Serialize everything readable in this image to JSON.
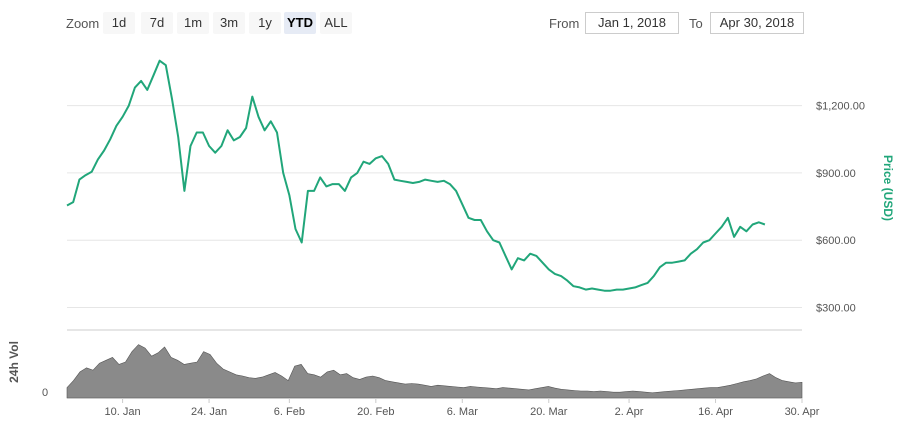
{
  "toolbar": {
    "zoom_label": "Zoom",
    "buttons": [
      "1d",
      "7d",
      "1m",
      "3m",
      "1y",
      "YTD",
      "ALL"
    ],
    "active": "YTD",
    "from_label": "From",
    "from_value": "Jan 1, 2018",
    "to_label": "To",
    "to_value": "Apr 30, 2018"
  },
  "colors": {
    "line": "#21a67a",
    "volume": "#8a8a8a",
    "grid": "#e6e6e6"
  },
  "chart_data": {
    "type": "line",
    "title": "",
    "xlabel": "",
    "ylabel": "Price (USD)",
    "volume_label": "24h Vol",
    "volume_zero_label": "0",
    "ylim": [
      200,
      1470
    ],
    "y_ticks": [
      {
        "value": 300,
        "label": "$300.00"
      },
      {
        "value": 600,
        "label": "$600.00"
      },
      {
        "value": 900,
        "label": "$900.00"
      },
      {
        "value": 1200,
        "label": "$1,200.00"
      }
    ],
    "x_ticks": [
      {
        "day": 9,
        "label": "10. Jan"
      },
      {
        "day": 23,
        "label": "24. Jan"
      },
      {
        "day": 36,
        "label": "6. Feb"
      },
      {
        "day": 50,
        "label": "20. Feb"
      },
      {
        "day": 64,
        "label": "6. Mar"
      },
      {
        "day": 78,
        "label": "20. Mar"
      },
      {
        "day": 91,
        "label": "2. Apr"
      },
      {
        "day": 105,
        "label": "16. Apr"
      },
      {
        "day": 119,
        "label": "30. Apr"
      }
    ],
    "series": [
      {
        "name": "Price",
        "points": [
          [
            0,
            755
          ],
          [
            1,
            770
          ],
          [
            2,
            870
          ],
          [
            3,
            890
          ],
          [
            4,
            905
          ],
          [
            5,
            960
          ],
          [
            6,
            1000
          ],
          [
            7,
            1050
          ],
          [
            8,
            1110
          ],
          [
            9,
            1150
          ],
          [
            10,
            1200
          ],
          [
            11,
            1280
          ],
          [
            12,
            1310
          ],
          [
            13,
            1270
          ],
          [
            14,
            1335
          ],
          [
            15,
            1400
          ],
          [
            16,
            1380
          ],
          [
            17,
            1230
          ],
          [
            18,
            1060
          ],
          [
            19,
            820
          ],
          [
            20,
            1020
          ],
          [
            21,
            1080
          ],
          [
            22,
            1080
          ],
          [
            23,
            1020
          ],
          [
            24,
            990
          ],
          [
            25,
            1020
          ],
          [
            26,
            1090
          ],
          [
            27,
            1045
          ],
          [
            28,
            1060
          ],
          [
            29,
            1100
          ],
          [
            30,
            1240
          ],
          [
            31,
            1150
          ],
          [
            32,
            1090
          ],
          [
            33,
            1130
          ],
          [
            34,
            1080
          ],
          [
            35,
            900
          ],
          [
            36,
            800
          ],
          [
            37,
            650
          ],
          [
            38,
            590
          ],
          [
            39,
            820
          ],
          [
            40,
            820
          ],
          [
            41,
            880
          ],
          [
            42,
            840
          ],
          [
            43,
            850
          ],
          [
            44,
            850
          ],
          [
            45,
            820
          ],
          [
            46,
            880
          ],
          [
            47,
            900
          ],
          [
            48,
            950
          ],
          [
            49,
            940
          ],
          [
            50,
            965
          ],
          [
            51,
            975
          ],
          [
            52,
            940
          ],
          [
            53,
            870
          ],
          [
            54,
            865
          ],
          [
            55,
            860
          ],
          [
            56,
            855
          ],
          [
            57,
            860
          ],
          [
            58,
            870
          ],
          [
            59,
            865
          ],
          [
            60,
            860
          ],
          [
            61,
            865
          ],
          [
            62,
            850
          ],
          [
            63,
            820
          ],
          [
            64,
            760
          ],
          [
            65,
            700
          ],
          [
            66,
            690
          ],
          [
            67,
            690
          ],
          [
            68,
            640
          ],
          [
            69,
            600
          ],
          [
            70,
            590
          ],
          [
            71,
            530
          ],
          [
            72,
            470
          ],
          [
            73,
            520
          ],
          [
            74,
            510
          ],
          [
            75,
            540
          ],
          [
            76,
            530
          ],
          [
            77,
            500
          ],
          [
            78,
            470
          ],
          [
            79,
            450
          ],
          [
            80,
            440
          ],
          [
            81,
            420
          ],
          [
            82,
            395
          ],
          [
            83,
            390
          ],
          [
            84,
            380
          ],
          [
            85,
            385
          ],
          [
            86,
            380
          ],
          [
            87,
            375
          ],
          [
            88,
            375
          ],
          [
            89,
            380
          ],
          [
            90,
            380
          ],
          [
            91,
            385
          ],
          [
            92,
            390
          ],
          [
            93,
            400
          ],
          [
            94,
            410
          ],
          [
            95,
            440
          ],
          [
            96,
            480
          ],
          [
            97,
            500
          ],
          [
            98,
            500
          ],
          [
            99,
            505
          ],
          [
            100,
            510
          ],
          [
            101,
            540
          ],
          [
            102,
            560
          ],
          [
            103,
            590
          ],
          [
            104,
            600
          ],
          [
            105,
            630
          ],
          [
            106,
            660
          ],
          [
            107,
            700
          ],
          [
            108,
            615
          ],
          [
            109,
            660
          ],
          [
            110,
            640
          ],
          [
            111,
            670
          ],
          [
            112,
            680
          ],
          [
            113,
            670
          ]
        ]
      }
    ],
    "volume": [
      18,
      30,
      45,
      52,
      48,
      60,
      65,
      70,
      58,
      62,
      80,
      92,
      86,
      72,
      78,
      88,
      70,
      65,
      58,
      60,
      62,
      80,
      75,
      60,
      50,
      45,
      40,
      38,
      35,
      34,
      36,
      40,
      44,
      38,
      30,
      55,
      58,
      42,
      40,
      36,
      45,
      48,
      40,
      42,
      35,
      32,
      36,
      38,
      35,
      30,
      28,
      26,
      24,
      25,
      24,
      22,
      20,
      22,
      21,
      20,
      19,
      18,
      20,
      19,
      18,
      17,
      16,
      18,
      17,
      16,
      15,
      14,
      16,
      18,
      20,
      17,
      15,
      14,
      13,
      12,
      12,
      11,
      12,
      11,
      10,
      10,
      11,
      12,
      11,
      10,
      9,
      10,
      11,
      12,
      13,
      14,
      15,
      16,
      17,
      18,
      18,
      20,
      22,
      25,
      28,
      30,
      33,
      38,
      42,
      35,
      30,
      28,
      26,
      27
    ]
  }
}
